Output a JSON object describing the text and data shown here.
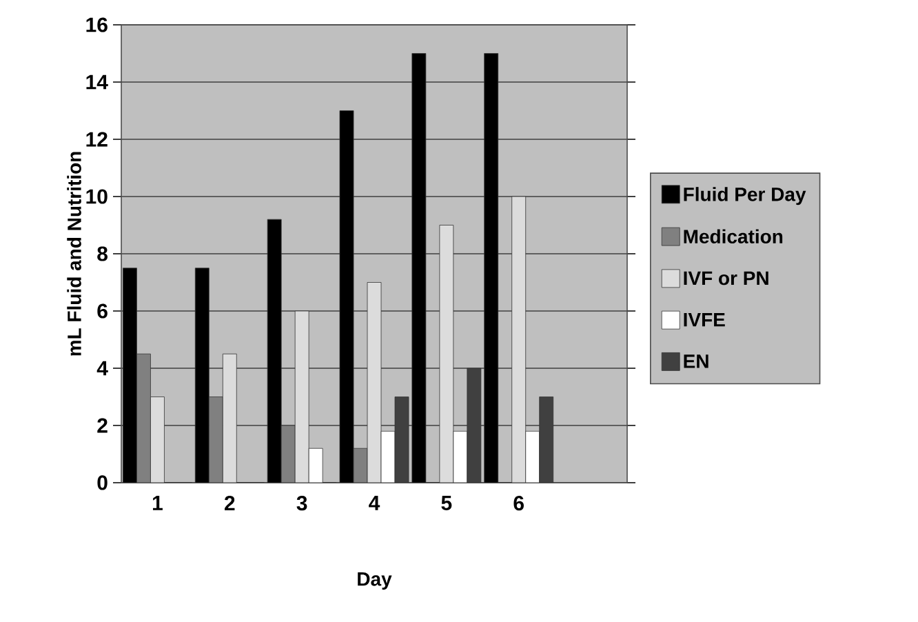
{
  "chart_data": {
    "type": "bar",
    "xlabel": "Day",
    "ylabel": "mL Fluid and Nutrition",
    "categories": [
      "1",
      "2",
      "3",
      "4",
      "5",
      "6",
      null
    ],
    "series": [
      {
        "name": "Fluid Per Day",
        "color": "#000000",
        "values": [
          7.5,
          7.5,
          9.2,
          13,
          15,
          15,
          null
        ]
      },
      {
        "name": "Medication",
        "color": "#808080",
        "values": [
          4.5,
          3,
          2,
          1.2,
          0,
          0,
          null
        ]
      },
      {
        "name": "IVF or PN",
        "color": "#dcdcdc",
        "values": [
          3,
          4.5,
          6,
          7,
          9,
          10,
          null
        ]
      },
      {
        "name": "IVFE",
        "color": "#ffffff",
        "values": [
          0,
          0,
          1.2,
          1.8,
          1.8,
          1.8,
          null
        ]
      },
      {
        "name": "EN",
        "color": "#404040",
        "values": [
          0,
          0,
          0,
          3,
          4,
          3,
          null
        ]
      }
    ],
    "ylim": [
      0,
      16
    ],
    "yticks": [
      0,
      2,
      4,
      6,
      8,
      10,
      12,
      14,
      16
    ],
    "grid": "y",
    "legend": "right"
  }
}
